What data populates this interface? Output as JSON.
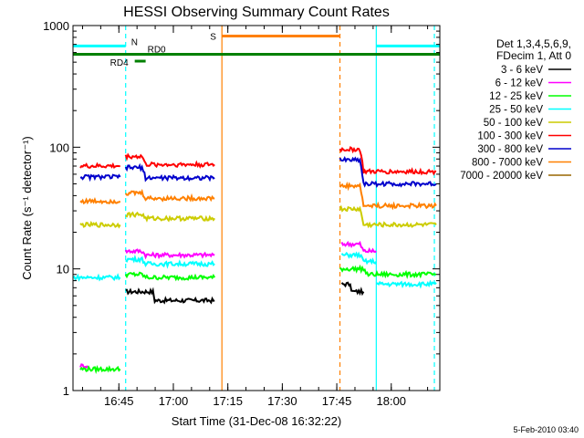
{
  "chart_data": {
    "type": "line",
    "title": "HESSI Observing Summary Count Rates",
    "xlabel": "Start Time (31-Dec-08 16:32:22)",
    "ylabel": "Count Rate (s⁻¹ detector⁻¹)",
    "y_scale": "log",
    "ylim": [
      1,
      1000
    ],
    "xlim_minutes_after_16_32_22": [
      0,
      101
    ],
    "x_tick_labels": [
      "16:45",
      "17:00",
      "17:15",
      "17:30",
      "17:45",
      "18:00"
    ],
    "x_tick_minutes": [
      12.63,
      27.63,
      42.63,
      57.63,
      72.63,
      87.63
    ],
    "y_tick_labels": [
      "1",
      "10",
      "100",
      "1000"
    ],
    "y_tick_values": [
      1,
      10,
      100,
      1000
    ],
    "legend_header": [
      "Det 1,3,4,5,6,9,",
      "FDecim 1, Att 0"
    ],
    "legend_position": "right",
    "footer_date": "5-Feb-2010 03:40",
    "series": [
      {
        "name": "3 - 6 keV",
        "color": "#000000",
        "segments": [
          {
            "x": [
              14.5,
              22,
              22.5,
              39
            ],
            "y": [
              6.5,
              6.5,
              5.5,
              5.5
            ]
          },
          {
            "x": [
              74,
              76,
              77,
              80
            ],
            "y": [
              7.5,
              7.5,
              6.5,
              6.5
            ]
          }
        ]
      },
      {
        "name": "6 - 12 keV",
        "color": "#ff00ff",
        "segments": [
          {
            "x": [
              2,
              4
            ],
            "y": [
              1.6,
              1.6
            ]
          },
          {
            "x": [
              14.5,
              19,
              20,
              39
            ],
            "y": [
              14,
              14,
              13,
              13
            ]
          },
          {
            "x": [
              74,
              79,
              80,
              83.5
            ],
            "y": [
              16,
              16,
              14,
              14
            ]
          }
        ]
      },
      {
        "name": "12 - 25 keV",
        "color": "#00ff00",
        "segments": [
          {
            "x": [
              2,
              13
            ],
            "y": [
              1.5,
              1.5
            ]
          },
          {
            "x": [
              14.5,
              19,
              20,
              39
            ],
            "y": [
              9,
              9,
              8.5,
              8.5
            ]
          },
          {
            "x": [
              73.5,
              80,
              81,
              100
            ],
            "y": [
              10,
              10,
              9,
              9
            ]
          }
        ]
      },
      {
        "name": "25 - 50 keV",
        "color": "#00ffff",
        "segments": [
          {
            "x": [
              0,
              13
            ],
            "y": [
              8.5,
              8.5
            ]
          },
          {
            "x": [
              14.5,
              19,
              20,
              39
            ],
            "y": [
              12,
              12,
              11,
              11
            ]
          },
          {
            "x": [
              74,
              79,
              80,
              83.5
            ],
            "y": [
              13,
              13,
              11.5,
              11.5
            ]
          },
          {
            "x": [
              83.5,
              100
            ],
            "y": [
              7.5,
              7.5
            ]
          }
        ]
      },
      {
        "name": "50 - 100 keV",
        "color": "#cccc00",
        "segments": [
          {
            "x": [
              2,
              13
            ],
            "y": [
              23,
              23
            ]
          },
          {
            "x": [
              14.5,
              19,
              20,
              39
            ],
            "y": [
              28,
              28,
              26,
              26
            ]
          },
          {
            "x": [
              73.5,
              79,
              80,
              100
            ],
            "y": [
              31,
              31,
              23,
              23
            ]
          }
        ]
      },
      {
        "name": "100 - 300 keV",
        "color": "#ff0000",
        "segments": [
          {
            "x": [
              2,
              13
            ],
            "y": [
              70,
              70
            ]
          },
          {
            "x": [
              14.5,
              19,
              20,
              39
            ],
            "y": [
              84,
              84,
              72,
              72
            ]
          },
          {
            "x": [
              73.5,
              79,
              80,
              100
            ],
            "y": [
              96,
              96,
              63,
              63
            ]
          }
        ]
      },
      {
        "name": "300 - 800 keV",
        "color": "#0000cc",
        "segments": [
          {
            "x": [
              2,
              13
            ],
            "y": [
              57,
              57
            ]
          },
          {
            "x": [
              14.5,
              19,
              20,
              39
            ],
            "y": [
              68,
              68,
              56,
              56
            ]
          },
          {
            "x": [
              73.5,
              79,
              80,
              100
            ],
            "y": [
              79,
              79,
              50,
              50
            ]
          }
        ]
      },
      {
        "name": "800 - 7000 keV",
        "color": "#ff8000",
        "segments": [
          {
            "x": [
              2,
              13
            ],
            "y": [
              36,
              36
            ]
          },
          {
            "x": [
              14.5,
              19,
              20,
              39
            ],
            "y": [
              42,
              42,
              38,
              38
            ]
          },
          {
            "x": [
              73.5,
              79,
              80,
              100
            ],
            "y": [
              48,
              48,
              33,
              33
            ]
          }
        ]
      },
      {
        "name": "7000 - 20000 keV",
        "color": "#996600",
        "segments": []
      }
    ],
    "flags": [
      {
        "label": "N",
        "color": "#00ffff",
        "x_start": 0,
        "x_end": 14.5,
        "y": 680
      },
      {
        "label": "N",
        "color": "#00ffff",
        "x_start": 83.5,
        "x_end": 101,
        "y": 680
      },
      {
        "label": "S",
        "color": "#ff8000",
        "x_start": 41,
        "x_end": 73.5,
        "y": 820
      },
      {
        "label": "RD0",
        "color": "#008000",
        "x_start": 0,
        "x_end": 101,
        "y": 580
      },
      {
        "label": "RD4",
        "color": "#008000",
        "x_start": 17,
        "x_end": 20,
        "y": 510
      }
    ],
    "vertical_markers": [
      {
        "x": 14.5,
        "color": "#00ffff",
        "style": "dashed"
      },
      {
        "x": 83.5,
        "color": "#00ffff",
        "style": "solid"
      },
      {
        "x": 99.5,
        "color": "#00ffff",
        "style": "dashed"
      },
      {
        "x": 41,
        "color": "#ff8000",
        "style": "solid"
      },
      {
        "x": 73.5,
        "color": "#ff8000",
        "style": "dashed"
      }
    ]
  }
}
